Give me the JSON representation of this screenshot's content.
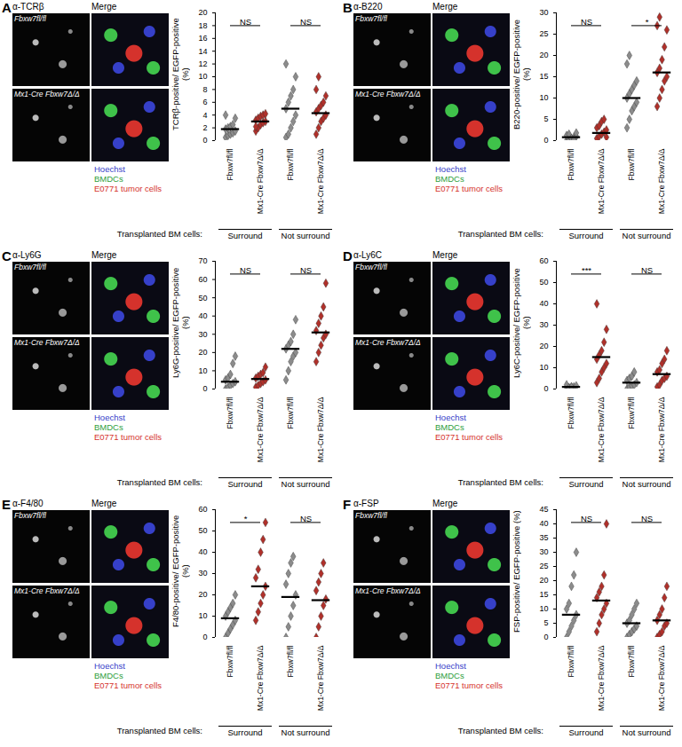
{
  "image_panels": {
    "row_labels": [
      "Fbxw7fl/fl",
      "Mx1-Cre Fbxw7Δ/Δ"
    ],
    "merge_label": "Merge",
    "legend": [
      {
        "name": "Hoechst",
        "color": "#3640c9"
      },
      {
        "name": "BMDCs",
        "color": "#2e9e3a"
      },
      {
        "name": "E0771 tumor cells",
        "color": "#d5322c"
      }
    ],
    "group_axis_title": "Transplanted BM cells:",
    "panels": [
      {
        "letter": "A",
        "stain": "α-TCRβ"
      },
      {
        "letter": "B",
        "stain": "α-B220"
      },
      {
        "letter": "C",
        "stain": "α-Ly6G"
      },
      {
        "letter": "D",
        "stain": "α-Ly6C"
      },
      {
        "letter": "E",
        "stain": "α-F4/80"
      },
      {
        "letter": "F",
        "stain": "α-FSP"
      }
    ]
  },
  "chart_data": [
    {
      "type": "scatter",
      "y_label": "TCRβ-positive/ EGFP-positive (%)",
      "ylim": [
        0,
        20
      ],
      "yticks": [
        0,
        2,
        4,
        6,
        8,
        10,
        12,
        14,
        16,
        18,
        20
      ],
      "regions": [
        "Surround",
        "Not surround"
      ],
      "series": [
        {
          "name": "Fbxw7fl/fl",
          "region": "Surround",
          "color": "#8c8c8c",
          "marker": "diamond",
          "values": [
            0.5,
            0.8,
            1,
            1.2,
            1.5,
            1.8,
            2,
            2.2,
            2.5,
            3.5,
            4
          ],
          "mean": 1.8
        },
        {
          "name": "Mx1-Cre Fbxw7Δ/Δ",
          "region": "Surround",
          "color": "#b0302a",
          "marker": "diamond",
          "values": [
            1.5,
            2,
            2.5,
            2.8,
            3,
            3.2,
            3.5,
            3.8,
            4,
            4.2,
            2.2
          ],
          "mean": 3
        },
        {
          "name": "Fbxw7fl/fl",
          "region": "Not surround",
          "color": "#8c8c8c",
          "marker": "diamond",
          "values": [
            0.5,
            1,
            2,
            3,
            4,
            5,
            6,
            7,
            8,
            10,
            12
          ],
          "mean": 5
        },
        {
          "name": "Mx1-Cre Fbxw7Δ/Δ",
          "region": "Not surround",
          "color": "#b0302a",
          "marker": "diamond",
          "values": [
            1,
            2,
            3,
            3.5,
            4,
            4.5,
            5,
            5.5,
            6,
            7,
            8,
            10
          ],
          "mean": 4.3
        }
      ],
      "comparisons": [
        {
          "groups": [
            0,
            1
          ],
          "label": "NS"
        },
        {
          "groups": [
            2,
            3
          ],
          "label": "NS"
        }
      ]
    },
    {
      "type": "scatter",
      "y_label": "B220-positive/ EGFP-positive (%)",
      "ylim": [
        0,
        30
      ],
      "yticks": [
        0,
        5,
        10,
        15,
        20,
        25,
        30
      ],
      "regions": [
        "Surround",
        "Not surround"
      ],
      "series": [
        {
          "name": "Fbxw7fl/fl",
          "region": "Surround",
          "color": "#8c8c8c",
          "marker": "diamond",
          "values": [
            0,
            0.2,
            0.5,
            0.8,
            1,
            1.2,
            1.5,
            0.5,
            0.3,
            1.8
          ],
          "mean": 0.8
        },
        {
          "name": "Mx1-Cre Fbxw7Δ/Δ",
          "region": "Surround",
          "color": "#b0302a",
          "marker": "diamond",
          "values": [
            0.5,
            1,
            1.5,
            2,
            2.5,
            3,
            3.5,
            4.5,
            5,
            0.8
          ],
          "mean": 1.8
        },
        {
          "name": "Fbxw7fl/fl",
          "region": "Not surround",
          "color": "#8c8c8c",
          "marker": "diamond",
          "values": [
            3,
            5,
            7,
            8,
            9,
            10,
            11,
            12,
            13,
            14,
            18,
            20
          ],
          "mean": 10
        },
        {
          "name": "Mx1-Cre Fbxw7Δ/Δ",
          "region": "Not surround",
          "color": "#b0302a",
          "marker": "diamond",
          "values": [
            8,
            10,
            12,
            14,
            15,
            16,
            17,
            19,
            22,
            26,
            27,
            29
          ],
          "mean": 16
        }
      ],
      "comparisons": [
        {
          "groups": [
            0,
            1
          ],
          "label": "NS"
        },
        {
          "groups": [
            2,
            3
          ],
          "label": "*"
        }
      ]
    },
    {
      "type": "scatter",
      "y_label": "Ly6G-positive/ EGFP-positive (%)",
      "ylim": [
        0,
        70
      ],
      "yticks": [
        0,
        10,
        20,
        30,
        40,
        50,
        60,
        70
      ],
      "regions": [
        "Surround",
        "Not surround"
      ],
      "series": [
        {
          "name": "Fbxw7fl/fl",
          "region": "Surround",
          "color": "#8c8c8c",
          "marker": "diamond",
          "values": [
            0,
            1,
            2,
            3,
            4,
            5,
            6,
            8,
            14,
            18
          ],
          "mean": 4
        },
        {
          "name": "Mx1-Cre Fbxw7Δ/Δ",
          "region": "Surround",
          "color": "#b0302a",
          "marker": "diamond",
          "values": [
            1,
            2,
            3,
            4,
            5,
            6,
            7,
            8,
            9,
            12
          ],
          "mean": 5.5
        },
        {
          "name": "Fbxw7fl/fl",
          "region": "Not surround",
          "color": "#8c8c8c",
          "marker": "diamond",
          "values": [
            5,
            10,
            15,
            18,
            20,
            22,
            24,
            26,
            30,
            38
          ],
          "mean": 22
        },
        {
          "name": "Mx1-Cre Fbxw7Δ/Δ",
          "region": "Not surround",
          "color": "#b0302a",
          "marker": "diamond",
          "values": [
            15,
            20,
            24,
            28,
            30,
            32,
            36,
            40,
            45,
            58
          ],
          "mean": 31
        }
      ],
      "comparisons": [
        {
          "groups": [
            0,
            1
          ],
          "label": "NS"
        },
        {
          "groups": [
            2,
            3
          ],
          "label": "NS"
        }
      ]
    },
    {
      "type": "scatter",
      "y_label": "Ly6C-positive/ EGFP-positive (%)",
      "ylim": [
        0,
        60
      ],
      "yticks": [
        0,
        10,
        20,
        30,
        40,
        50,
        60
      ],
      "regions": [
        "Surround",
        "Not surround"
      ],
      "series": [
        {
          "name": "Fbxw7fl/fl",
          "region": "Surround",
          "color": "#8c8c8c",
          "marker": "diamond",
          "values": [
            0,
            0.5,
            1,
            1,
            1.5,
            2,
            0.5,
            1
          ],
          "mean": 1
        },
        {
          "name": "Mx1-Cre Fbxw7Δ/Δ",
          "region": "Surround",
          "color": "#b0302a",
          "marker": "diamond",
          "values": [
            3,
            5,
            8,
            10,
            12,
            14,
            16,
            18,
            22,
            28,
            40
          ],
          "mean": 15
        },
        {
          "name": "Fbxw7fl/fl",
          "region": "Not surround",
          "color": "#8c8c8c",
          "marker": "diamond",
          "values": [
            0,
            1,
            1.5,
            2,
            3,
            4,
            5,
            6,
            8
          ],
          "mean": 3
        },
        {
          "name": "Mx1-Cre Fbxw7Δ/Δ",
          "region": "Not surround",
          "color": "#b0302a",
          "marker": "diamond",
          "values": [
            1,
            2,
            4,
            5,
            6,
            8,
            9,
            12,
            14,
            18
          ],
          "mean": 7
        }
      ],
      "comparisons": [
        {
          "groups": [
            0,
            1
          ],
          "label": "***"
        },
        {
          "groups": [
            2,
            3
          ],
          "label": "NS"
        }
      ]
    },
    {
      "type": "scatter",
      "y_label": "F4/80-positive/ EGFP-positive (%)",
      "ylim": [
        0,
        60
      ],
      "yticks": [
        0,
        10,
        20,
        30,
        40,
        50,
        60
      ],
      "regions": [
        "Surround",
        "Not surround"
      ],
      "series": [
        {
          "name": "Fbxw7fl/fl",
          "region": "Surround",
          "color": "#8c8c8c",
          "marker": "diamond",
          "values": [
            0,
            2,
            4,
            6,
            8,
            10,
            12,
            14,
            16,
            20
          ],
          "mean": 9
        },
        {
          "name": "Mx1-Cre Fbxw7Δ/Δ",
          "region": "Surround",
          "color": "#b0302a",
          "marker": "diamond",
          "values": [
            8,
            12,
            16,
            20,
            24,
            28,
            32,
            40,
            46,
            54
          ],
          "mean": 24
        },
        {
          "name": "Fbxw7fl/fl",
          "region": "Not surround",
          "color": "#8c8c8c",
          "marker": "diamond",
          "values": [
            0,
            5,
            10,
            15,
            20,
            25,
            30,
            35,
            38
          ],
          "mean": 19
        },
        {
          "name": "Mx1-Cre Fbxw7Δ/Δ",
          "region": "Not surround",
          "color": "#b0302a",
          "marker": "diamond",
          "values": [
            0,
            5,
            10,
            15,
            18,
            22,
            26,
            30,
            35
          ],
          "mean": 17.5
        }
      ],
      "comparisons": [
        {
          "groups": [
            0,
            1
          ],
          "label": "*"
        },
        {
          "groups": [
            2,
            3
          ],
          "label": "NS"
        }
      ]
    },
    {
      "type": "scatter",
      "y_label": "FSP-positive/ EGFP-positive (%)",
      "ylim": [
        0,
        45
      ],
      "yticks": [
        0,
        5,
        10,
        15,
        20,
        25,
        30,
        35,
        40,
        45
      ],
      "regions": [
        "Surround",
        "Not surround"
      ],
      "series": [
        {
          "name": "Fbxw7fl/fl",
          "region": "Surround",
          "color": "#8c8c8c",
          "marker": "diamond",
          "values": [
            0,
            2,
            4,
            6,
            8,
            10,
            12,
            18,
            22,
            30
          ],
          "mean": 8
        },
        {
          "name": "Mx1-Cre Fbxw7Δ/Δ",
          "region": "Surround",
          "color": "#b0302a",
          "marker": "diamond",
          "values": [
            2,
            5,
            8,
            10,
            12,
            14,
            16,
            18,
            22,
            40
          ],
          "mean": 13
        },
        {
          "name": "Fbxw7fl/fl",
          "region": "Not surround",
          "color": "#8c8c8c",
          "marker": "diamond",
          "values": [
            0,
            1,
            2,
            3,
            4,
            5,
            6,
            8,
            10,
            12
          ],
          "mean": 5
        },
        {
          "name": "Mx1-Cre Fbxw7Δ/Δ",
          "region": "Not surround",
          "color": "#b0302a",
          "marker": "diamond",
          "values": [
            0,
            1,
            2,
            4,
            5,
            6,
            8,
            10,
            14,
            18
          ],
          "mean": 6
        }
      ],
      "comparisons": [
        {
          "groups": [
            0,
            1
          ],
          "label": "NS"
        },
        {
          "groups": [
            2,
            3
          ],
          "label": "NS"
        }
      ]
    }
  ]
}
